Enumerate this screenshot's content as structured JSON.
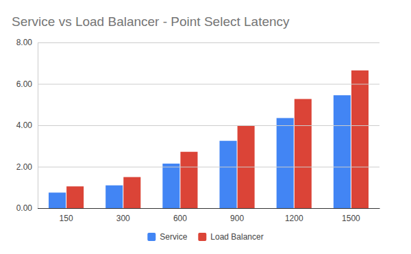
{
  "chart_data": {
    "type": "bar",
    "title": "Service vs Load Balancer - Point Select Latency",
    "categories": [
      "150",
      "300",
      "600",
      "900",
      "1200",
      "1500"
    ],
    "series": [
      {
        "name": "Service",
        "color": "#4285f4",
        "values": [
          0.75,
          1.1,
          2.15,
          3.25,
          4.35,
          5.45
        ]
      },
      {
        "name": "Load Balancer",
        "color": "#db4437",
        "values": [
          1.05,
          1.5,
          2.72,
          3.97,
          5.27,
          6.65
        ]
      }
    ],
    "ylim": [
      0,
      8
    ],
    "yticks": [
      {
        "value": 0,
        "label": "0.00"
      },
      {
        "value": 2,
        "label": "2.00"
      },
      {
        "value": 4,
        "label": "4.00"
      },
      {
        "value": 6,
        "label": "6.00"
      },
      {
        "value": 8,
        "label": "8.00"
      }
    ],
    "grid": true,
    "legend": "bottom"
  }
}
